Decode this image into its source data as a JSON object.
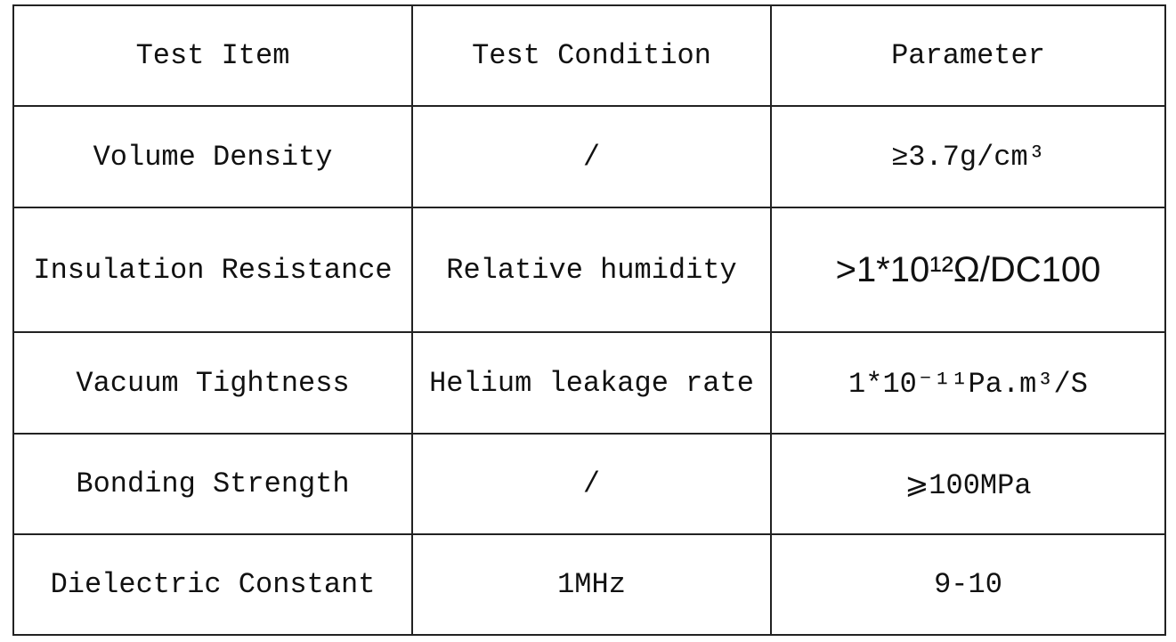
{
  "table": {
    "header": [
      "Test Item",
      "Test Condition",
      "Parameter"
    ],
    "rows": [
      [
        "Volume Density",
        "/",
        "≥3.7g/cm³"
      ],
      [
        "Insulation Resistance",
        "Relative humidity",
        ">1*10¹²Ω/DC100"
      ],
      [
        "Vacuum Tightness",
        "Helium leakage rate",
        "1*10⁻¹¹Pa.m³/S"
      ],
      [
        "Bonding Strength",
        "/",
        "⩾100MPa"
      ],
      [
        "Dielectric Constant",
        "1MHz",
        "9-10"
      ]
    ]
  }
}
